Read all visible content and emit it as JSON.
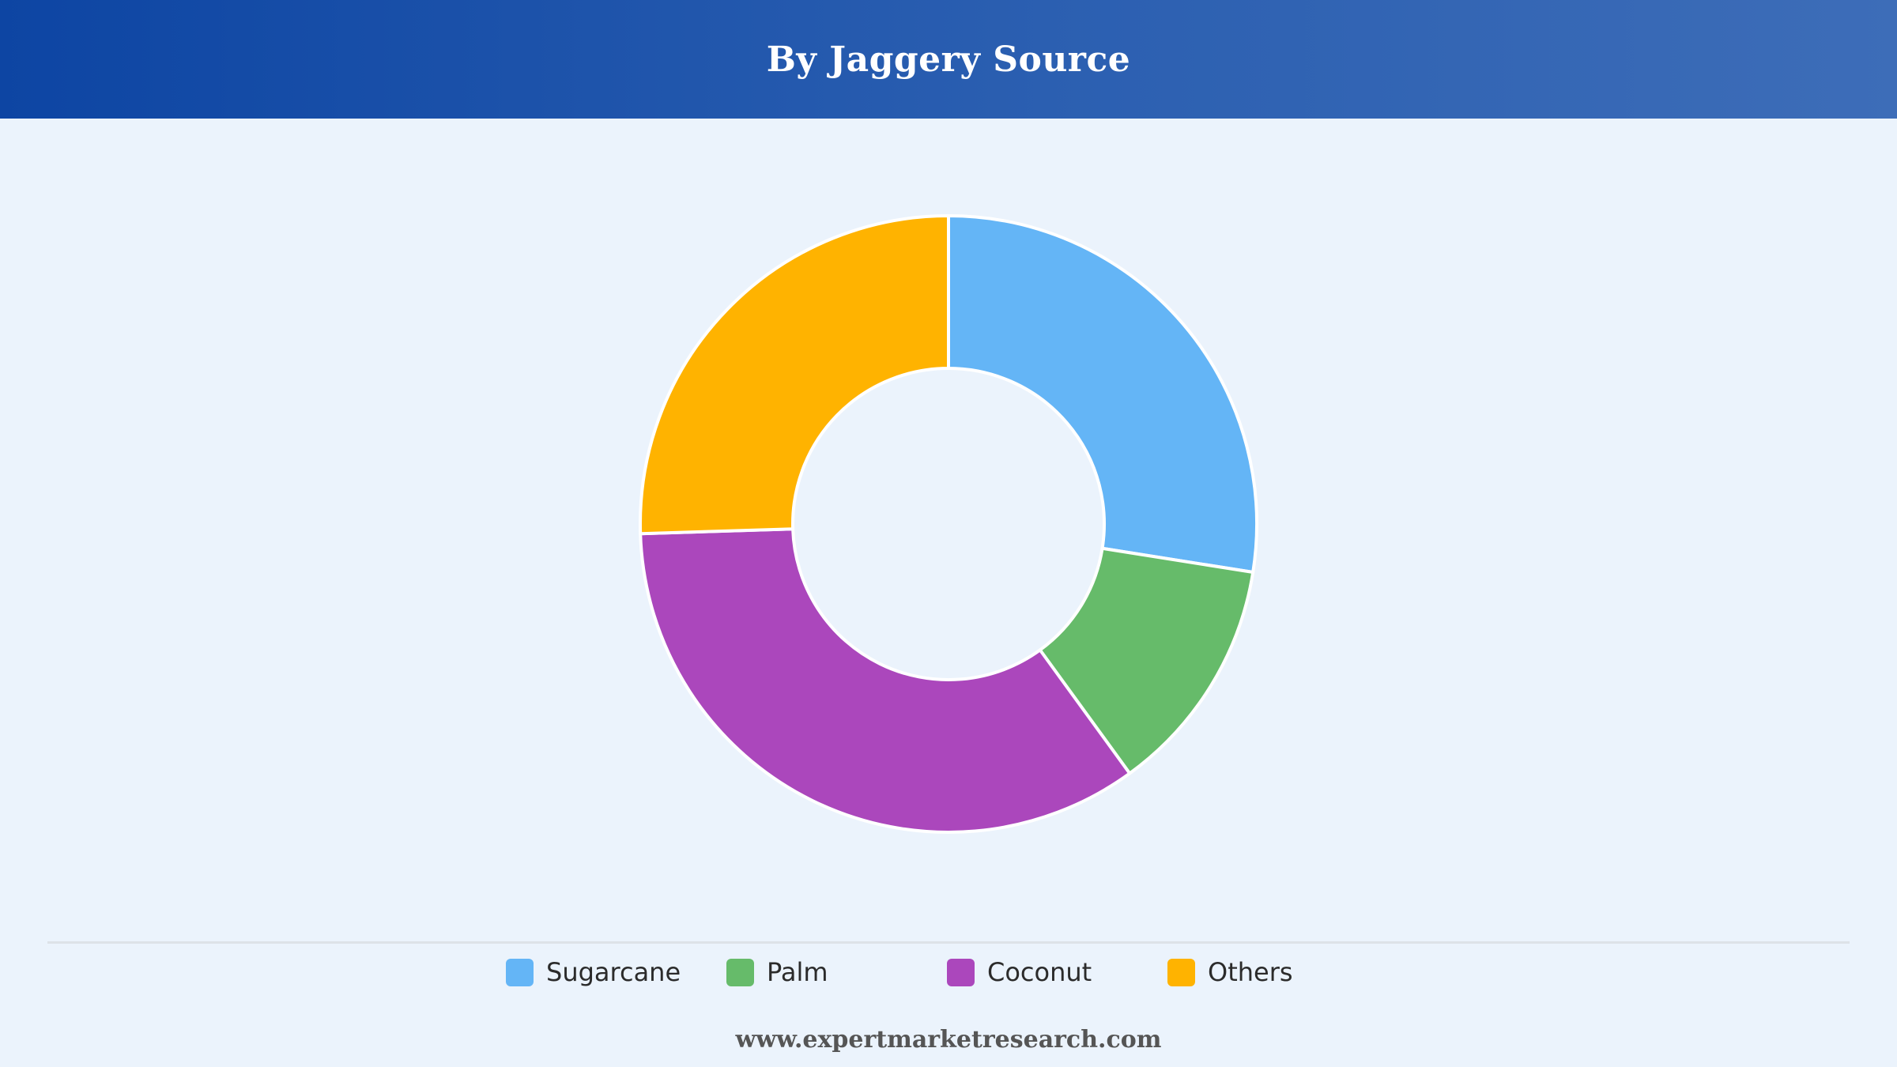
{
  "header": {
    "title": "By Jaggery Source"
  },
  "chart_data": {
    "type": "pie",
    "title": "By Jaggery Source",
    "donut": true,
    "legend_position": "bottom",
    "categories": [
      "Sugarcane",
      "Palm",
      "Coconut",
      "Others"
    ],
    "values": [
      27.5,
      12.5,
      34.5,
      25.5
    ],
    "colors": [
      "#64b5f6",
      "#66bb6a",
      "#ab47bc",
      "#ffb300"
    ],
    "start_angle_deg": 0,
    "direction": "clockwise"
  },
  "footer": {
    "text": "www.expertmarketresearch.com"
  }
}
